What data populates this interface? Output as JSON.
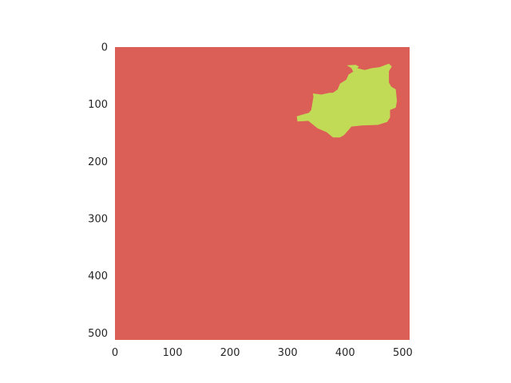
{
  "chart_data": {
    "type": "heatmap",
    "title": "",
    "xlabel": "",
    "ylabel": "",
    "xlim": [
      0,
      512
    ],
    "ylim": [
      512,
      0
    ],
    "y_inverted": true,
    "grid": false,
    "x_ticks": [
      0,
      100,
      200,
      300,
      400,
      500
    ],
    "y_ticks": [
      0,
      100,
      200,
      300,
      400,
      500
    ],
    "colors": {
      "background_class": "#db5f57",
      "region_class": "#c2db57"
    },
    "region_polygon": [
      [
        403,
        32
      ],
      [
        418,
        31
      ],
      [
        424,
        34
      ],
      [
        421,
        37
      ],
      [
        434,
        40
      ],
      [
        446,
        37
      ],
      [
        460,
        35
      ],
      [
        476,
        29
      ],
      [
        481,
        34
      ],
      [
        476,
        42
      ],
      [
        476,
        62
      ],
      [
        480,
        69
      ],
      [
        488,
        74
      ],
      [
        490,
        94
      ],
      [
        488,
        106
      ],
      [
        478,
        110
      ],
      [
        478,
        123
      ],
      [
        473,
        131
      ],
      [
        457,
        136
      ],
      [
        429,
        137
      ],
      [
        411,
        139
      ],
      [
        404,
        147
      ],
      [
        398,
        154
      ],
      [
        391,
        158
      ],
      [
        379,
        158
      ],
      [
        368,
        149
      ],
      [
        352,
        142
      ],
      [
        336,
        129
      ],
      [
        317,
        130
      ],
      [
        316,
        121
      ],
      [
        326,
        118
      ],
      [
        337,
        115
      ],
      [
        341,
        110
      ],
      [
        345,
        87
      ],
      [
        344,
        81
      ],
      [
        359,
        83
      ],
      [
        373,
        80
      ],
      [
        379,
        80
      ],
      [
        387,
        74
      ],
      [
        391,
        64
      ],
      [
        402,
        57
      ],
      [
        406,
        48
      ],
      [
        414,
        43
      ],
      [
        411,
        37
      ]
    ]
  }
}
